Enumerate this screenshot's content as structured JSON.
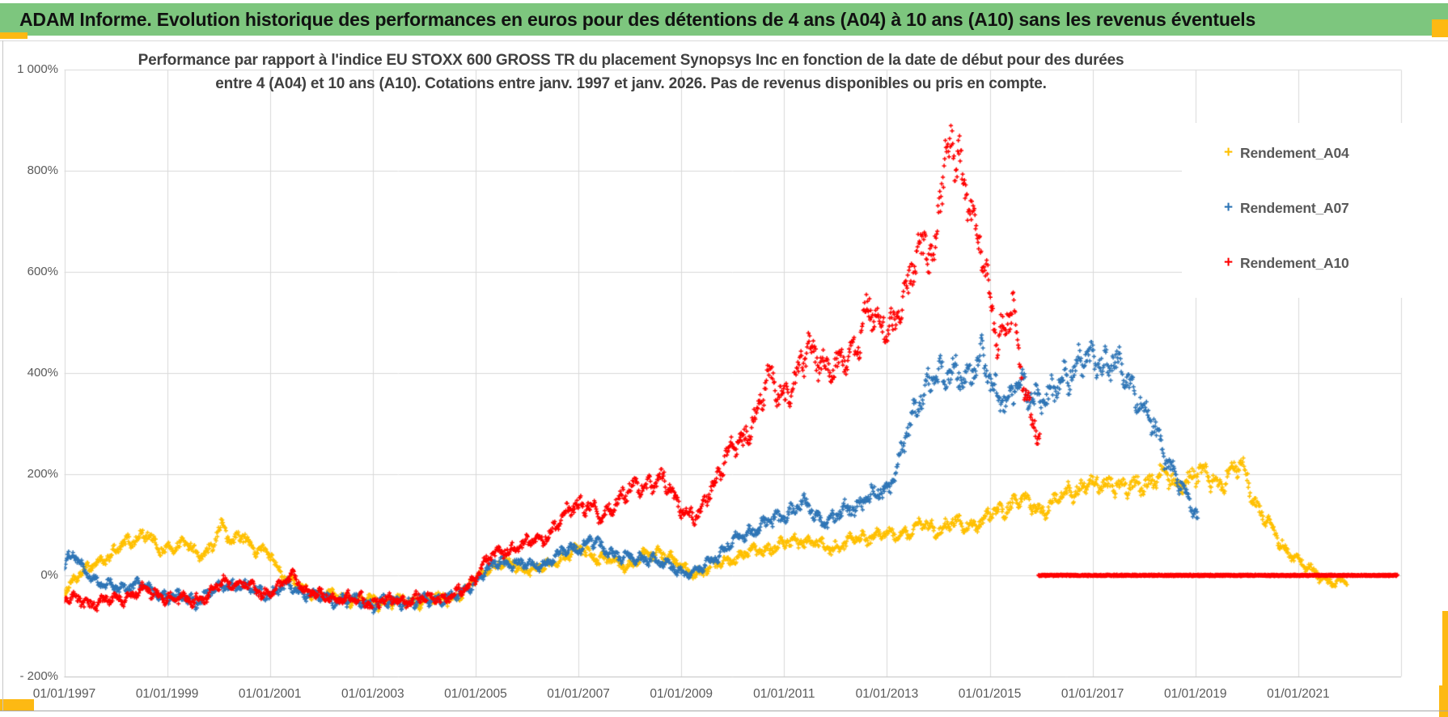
{
  "header": {
    "title": "ADAM Informe. Evolution historique des performances en euros pour des détentions de 4 ans (A04) à 10 ans (A10) sans les revenus éventuels",
    "bg_color": "#7dc67e",
    "accent_color": "#fdb913"
  },
  "chart_data": {
    "type": "scatter",
    "title_line1": "Performance par rapport à l'indice EU STOXX 600 GROSS TR  du placement Synopsys Inc en fonction de la date de début pour des durées",
    "title_line2": "entre 4 (A04) et 10 ans (A10). Cotations entre janv. 1997 et janv. 2026. Pas de revenus disponibles ou pris en compte.",
    "marker": "plus",
    "grid": true,
    "legend_position": "right",
    "x_axis": {
      "type": "date",
      "tick_labels": [
        "01/01/1997",
        "01/01/1999",
        "01/01/2001",
        "01/01/2003",
        "01/01/2005",
        "01/01/2007",
        "01/01/2009",
        "01/01/2011",
        "01/01/2013",
        "01/01/2015",
        "01/01/2017",
        "01/01/2019",
        "01/01/2021"
      ],
      "tick_years": [
        1997,
        1999,
        2001,
        2003,
        2005,
        2007,
        2009,
        2011,
        2013,
        2015,
        2017,
        2019,
        2021
      ],
      "range_years": [
        1997,
        2023
      ]
    },
    "y_axis": {
      "tick_labels": [
        "1 000%",
        "800%",
        "600%",
        "400%",
        "200%",
        "0%",
        "- 200%"
      ],
      "tick_values": [
        1000,
        800,
        600,
        400,
        200,
        0,
        -200
      ],
      "range_pct": [
        -200,
        1000
      ]
    },
    "series": [
      {
        "name": "Rendement_A04",
        "color": "#FFC000",
        "end_year": 2021.95,
        "keypoints": [
          [
            1997.0,
            -30
          ],
          [
            1997.2,
            -5
          ],
          [
            1997.5,
            15
          ],
          [
            1997.8,
            35
          ],
          [
            1998.1,
            55
          ],
          [
            1998.35,
            70
          ],
          [
            1998.6,
            88
          ],
          [
            1998.85,
            45
          ],
          [
            1999.1,
            58
          ],
          [
            1999.35,
            68
          ],
          [
            1999.6,
            35
          ],
          [
            1999.85,
            55
          ],
          [
            2000.05,
            100
          ],
          [
            2000.25,
            60
          ],
          [
            2000.45,
            88
          ],
          [
            2000.7,
            50
          ],
          [
            2001.0,
            42
          ],
          [
            2001.3,
            -5
          ],
          [
            2001.6,
            -25
          ],
          [
            2001.9,
            -38
          ],
          [
            2002.3,
            -42
          ],
          [
            2002.7,
            -47
          ],
          [
            2003.1,
            -52
          ],
          [
            2003.6,
            -50
          ],
          [
            2004.1,
            -48
          ],
          [
            2004.5,
            -44
          ],
          [
            2004.8,
            -32
          ],
          [
            2005.0,
            -10
          ],
          [
            2005.2,
            12
          ],
          [
            2005.45,
            22
          ],
          [
            2005.7,
            24
          ],
          [
            2005.95,
            14
          ],
          [
            2006.2,
            10
          ],
          [
            2006.5,
            25
          ],
          [
            2006.8,
            40
          ],
          [
            2007.1,
            52
          ],
          [
            2007.4,
            34
          ],
          [
            2007.7,
            24
          ],
          [
            2008.0,
            20
          ],
          [
            2008.3,
            38
          ],
          [
            2008.6,
            48
          ],
          [
            2008.9,
            24
          ],
          [
            2009.2,
            4
          ],
          [
            2009.5,
            10
          ],
          [
            2009.8,
            28
          ],
          [
            2010.1,
            38
          ],
          [
            2010.4,
            48
          ],
          [
            2010.7,
            54
          ],
          [
            2011.0,
            60
          ],
          [
            2011.3,
            72
          ],
          [
            2011.6,
            62
          ],
          [
            2011.9,
            54
          ],
          [
            2012.2,
            62
          ],
          [
            2012.5,
            72
          ],
          [
            2012.8,
            82
          ],
          [
            2013.1,
            78
          ],
          [
            2013.4,
            88
          ],
          [
            2013.7,
            98
          ],
          [
            2014.0,
            92
          ],
          [
            2014.3,
            102
          ],
          [
            2014.6,
            98
          ],
          [
            2014.9,
            112
          ],
          [
            2015.2,
            128
          ],
          [
            2015.5,
            148
          ],
          [
            2015.8,
            138
          ],
          [
            2016.0,
            128
          ],
          [
            2016.3,
            148
          ],
          [
            2016.6,
            168
          ],
          [
            2016.9,
            182
          ],
          [
            2017.1,
            172
          ],
          [
            2017.4,
            186
          ],
          [
            2017.7,
            168
          ],
          [
            2018.0,
            182
          ],
          [
            2018.3,
            198
          ],
          [
            2018.6,
            182
          ],
          [
            2018.9,
            192
          ],
          [
            2019.2,
            198
          ],
          [
            2019.5,
            182
          ],
          [
            2019.8,
            212
          ],
          [
            2019.95,
            218
          ],
          [
            2020.1,
            158
          ],
          [
            2020.3,
            118
          ],
          [
            2020.5,
            88
          ],
          [
            2020.7,
            58
          ],
          [
            2020.9,
            38
          ],
          [
            2021.1,
            18
          ],
          [
            2021.3,
            8
          ],
          [
            2021.5,
            -6
          ],
          [
            2021.7,
            -18
          ],
          [
            2021.9,
            -10
          ]
        ]
      },
      {
        "name": "Rendement_A07",
        "color": "#2E75B6",
        "end_year": 2019.05,
        "keypoints": [
          [
            1997.0,
            18
          ],
          [
            1997.15,
            42
          ],
          [
            1997.4,
            8
          ],
          [
            1997.7,
            -16
          ],
          [
            1998.0,
            -26
          ],
          [
            1998.4,
            -16
          ],
          [
            1998.8,
            -36
          ],
          [
            1999.2,
            -46
          ],
          [
            1999.6,
            -50
          ],
          [
            2000.0,
            -24
          ],
          [
            2000.3,
            -16
          ],
          [
            2000.7,
            -30
          ],
          [
            2001.0,
            -36
          ],
          [
            2001.4,
            -20
          ],
          [
            2001.8,
            -40
          ],
          [
            2002.3,
            -48
          ],
          [
            2003.0,
            -56
          ],
          [
            2003.6,
            -52
          ],
          [
            2004.2,
            -48
          ],
          [
            2004.7,
            -40
          ],
          [
            2004.95,
            -16
          ],
          [
            2005.2,
            8
          ],
          [
            2005.5,
            28
          ],
          [
            2005.8,
            24
          ],
          [
            2006.1,
            18
          ],
          [
            2006.4,
            28
          ],
          [
            2006.7,
            44
          ],
          [
            2007.0,
            58
          ],
          [
            2007.25,
            68
          ],
          [
            2007.5,
            50
          ],
          [
            2007.8,
            40
          ],
          [
            2008.1,
            30
          ],
          [
            2008.4,
            36
          ],
          [
            2008.7,
            20
          ],
          [
            2009.0,
            8
          ],
          [
            2009.3,
            4
          ],
          [
            2009.6,
            32
          ],
          [
            2009.9,
            58
          ],
          [
            2010.2,
            78
          ],
          [
            2010.5,
            98
          ],
          [
            2010.8,
            108
          ],
          [
            2011.1,
            128
          ],
          [
            2011.4,
            140
          ],
          [
            2011.65,
            118
          ],
          [
            2011.9,
            108
          ],
          [
            2012.2,
            128
          ],
          [
            2012.5,
            148
          ],
          [
            2012.8,
            158
          ],
          [
            2013.0,
            172
          ],
          [
            2013.2,
            215
          ],
          [
            2013.45,
            295
          ],
          [
            2013.7,
            365
          ],
          [
            2013.9,
            405
          ],
          [
            2014.1,
            380
          ],
          [
            2014.35,
            415
          ],
          [
            2014.6,
            390
          ],
          [
            2014.85,
            425
          ],
          [
            2015.1,
            372
          ],
          [
            2015.35,
            335
          ],
          [
            2015.6,
            385
          ],
          [
            2015.85,
            360
          ],
          [
            2016.1,
            340
          ],
          [
            2016.4,
            395
          ],
          [
            2016.8,
            418
          ],
          [
            2017.1,
            428
          ],
          [
            2017.4,
            415
          ],
          [
            2017.7,
            388
          ],
          [
            2017.95,
            340
          ],
          [
            2018.15,
            298
          ],
          [
            2018.35,
            252
          ],
          [
            2018.55,
            215
          ],
          [
            2018.75,
            168
          ],
          [
            2018.95,
            128
          ],
          [
            2019.05,
            115
          ]
        ]
      },
      {
        "name": "Rendement_A10",
        "color": "#FF0000",
        "end_year": 2015.98,
        "flat_zero_segment": [
          2015.95,
          2022.93
        ],
        "keypoints": [
          [
            1997.0,
            -48
          ],
          [
            1997.5,
            -54
          ],
          [
            1998.0,
            -50
          ],
          [
            1998.5,
            -30
          ],
          [
            1998.9,
            -40
          ],
          [
            1999.3,
            -50
          ],
          [
            1999.8,
            -42
          ],
          [
            2000.1,
            -12
          ],
          [
            2000.5,
            -20
          ],
          [
            2000.9,
            -36
          ],
          [
            2001.2,
            -24
          ],
          [
            2001.45,
            2
          ],
          [
            2001.7,
            -30
          ],
          [
            2002.0,
            -42
          ],
          [
            2002.5,
            -46
          ],
          [
            2003.0,
            -52
          ],
          [
            2003.5,
            -50
          ],
          [
            2004.0,
            -46
          ],
          [
            2004.5,
            -42
          ],
          [
            2004.8,
            -28
          ],
          [
            2005.0,
            -2
          ],
          [
            2005.2,
            28
          ],
          [
            2005.5,
            48
          ],
          [
            2005.8,
            56
          ],
          [
            2006.1,
            66
          ],
          [
            2006.4,
            82
          ],
          [
            2006.7,
            110
          ],
          [
            2006.95,
            145
          ],
          [
            2007.2,
            138
          ],
          [
            2007.45,
            112
          ],
          [
            2007.7,
            148
          ],
          [
            2008.0,
            165
          ],
          [
            2008.3,
            182
          ],
          [
            2008.6,
            190
          ],
          [
            2008.85,
            158
          ],
          [
            2009.1,
            125
          ],
          [
            2009.35,
            112
          ],
          [
            2009.6,
            178
          ],
          [
            2009.9,
            245
          ],
          [
            2010.2,
            262
          ],
          [
            2010.45,
            325
          ],
          [
            2010.7,
            385
          ],
          [
            2010.95,
            355
          ],
          [
            2011.2,
            382
          ],
          [
            2011.5,
            448
          ],
          [
            2011.75,
            428
          ],
          [
            2012.0,
            398
          ],
          [
            2012.3,
            438
          ],
          [
            2012.6,
            525
          ],
          [
            2012.9,
            488
          ],
          [
            2013.15,
            508
          ],
          [
            2013.4,
            555
          ],
          [
            2013.6,
            635
          ],
          [
            2013.75,
            680
          ],
          [
            2013.9,
            615
          ],
          [
            2014.05,
            760
          ],
          [
            2014.25,
            855
          ],
          [
            2014.45,
            820
          ],
          [
            2014.6,
            745
          ],
          [
            2014.8,
            640
          ],
          [
            2015.0,
            555
          ],
          [
            2015.15,
            475
          ],
          [
            2015.3,
            490
          ],
          [
            2015.45,
            520
          ],
          [
            2015.6,
            400
          ],
          [
            2015.75,
            345
          ],
          [
            2015.9,
            295
          ],
          [
            2015.98,
            265
          ]
        ]
      }
    ],
    "colors": {
      "gridline": "#d9d9d9",
      "axis_line": "#bfbfbf",
      "tick_text": "#595959",
      "title_text": "#404040"
    }
  }
}
